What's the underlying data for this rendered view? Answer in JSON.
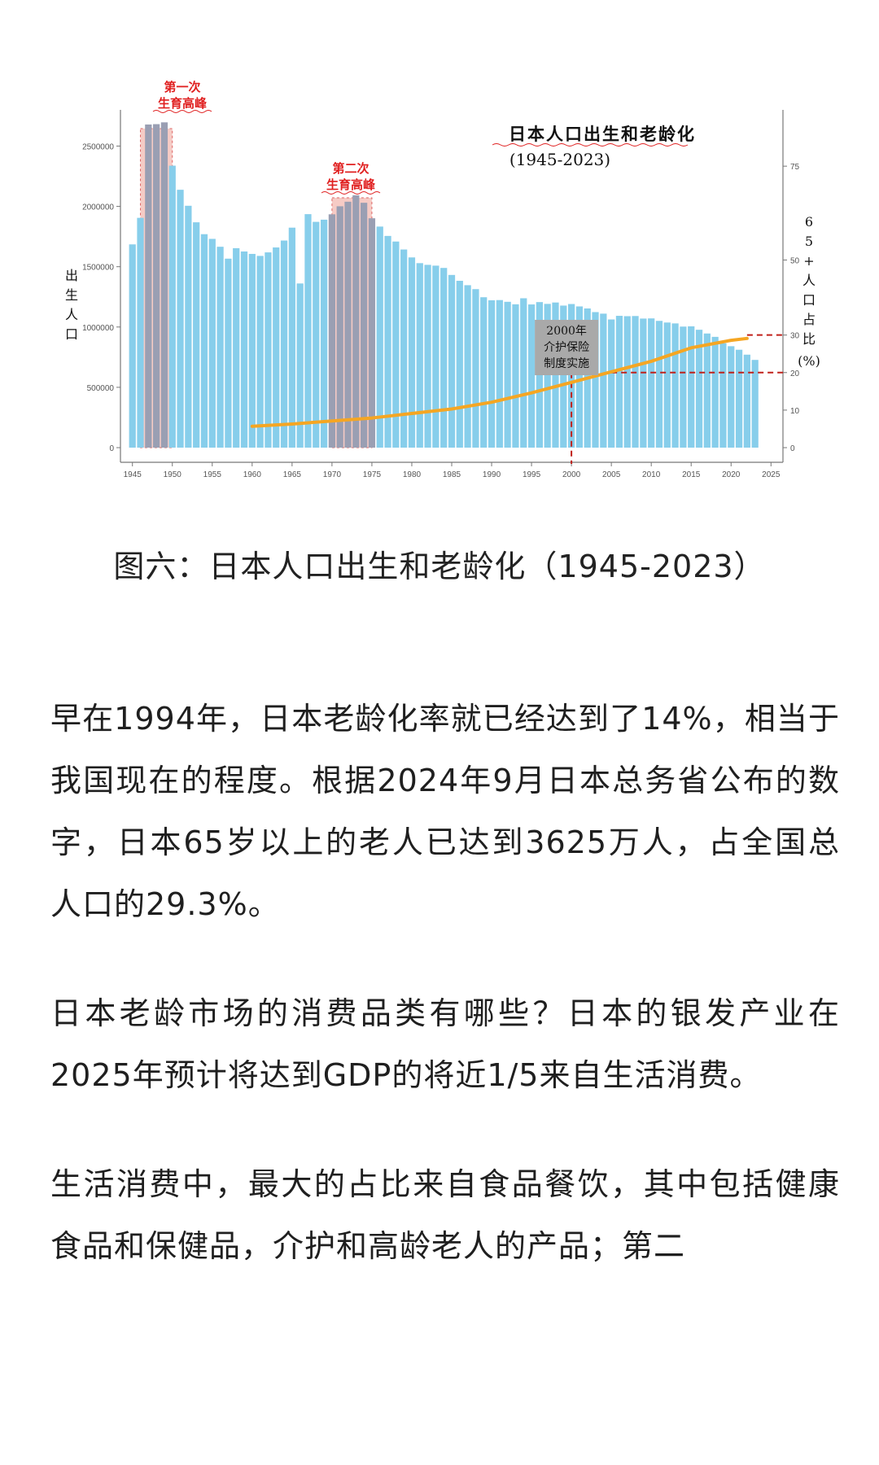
{
  "chart_data": {
    "type": "bar",
    "title": "日本人口出生和老龄化",
    "subtitle": "(1945-2023)",
    "ylabel_left": "出生人口",
    "ylabel_right": "65+人口占比(%)",
    "ylim_left": [
      0,
      2800000
    ],
    "yticks_left": [
      "0",
      "500000",
      "1000000",
      "1500000",
      "2000000",
      "2500000"
    ],
    "ylim_right": [
      0,
      90
    ],
    "yticks_right": [
      "0",
      "10",
      "20",
      "30",
      "50",
      "75"
    ],
    "xticks": [
      "1945",
      "1950",
      "1955",
      "1960",
      "1965",
      "1970",
      "1975",
      "1980",
      "1985",
      "1990",
      "1995",
      "2000",
      "2005",
      "2010",
      "2015",
      "2020",
      "2025"
    ],
    "bar_color": "#87ceeb",
    "line_color": "#f5a623",
    "births": {
      "x": [
        1945,
        1946,
        1947,
        1948,
        1949,
        1950,
        1951,
        1952,
        1953,
        1954,
        1955,
        1956,
        1957,
        1958,
        1959,
        1960,
        1961,
        1962,
        1963,
        1964,
        1965,
        1966,
        1967,
        1968,
        1969,
        1970,
        1971,
        1972,
        1973,
        1974,
        1975,
        1976,
        1977,
        1978,
        1979,
        1980,
        1981,
        1982,
        1983,
        1984,
        1985,
        1986,
        1987,
        1988,
        1989,
        1990,
        1991,
        1992,
        1993,
        1994,
        1995,
        1996,
        1997,
        1998,
        1999,
        2000,
        2001,
        2002,
        2003,
        2004,
        2005,
        2006,
        2007,
        2008,
        2009,
        2010,
        2011,
        2012,
        2013,
        2014,
        2015,
        2016,
        2017,
        2018,
        2019,
        2020,
        2021,
        2022,
        2023
      ],
      "values": [
        1685000,
        1905000,
        2678792,
        2681624,
        2696638,
        2337507,
        2137689,
        2005162,
        1868040,
        1769580,
        1730692,
        1665278,
        1566713,
        1653469,
        1626088,
        1606041,
        1589372,
        1618616,
        1659521,
        1716761,
        1823697,
        1360974,
        1935647,
        1871839,
        1889815,
        1934239,
        2000973,
        2038682,
        2091983,
        2029989,
        1901440,
        1832617,
        1755100,
        1708643,
        1642580,
        1576889,
        1529455,
        1515392,
        1508687,
        1489780,
        1431577,
        1382946,
        1346658,
        1314006,
        1246802,
        1221585,
        1223245,
        1208989,
        1188282,
        1238328,
        1187064,
        1206555,
        1191665,
        1203147,
        1177669,
        1190547,
        1170662,
        1153855,
        1123610,
        1110721,
        1062530,
        1092674,
        1089818,
        1091156,
        1070036,
        1071305,
        1050806,
        1037232,
        1029817,
        1003539,
        1005721,
        977242,
        946146,
        918400,
        865239,
        840835,
        811622,
        770759,
        727288
      ]
    },
    "aging": {
      "x": [
        1960,
        1965,
        1970,
        1975,
        1980,
        1985,
        1990,
        1995,
        2000,
        2005,
        2010,
        2015,
        2020,
        2022
      ],
      "values": [
        5.7,
        6.3,
        7.1,
        7.9,
        9.1,
        10.3,
        12.1,
        14.6,
        17.4,
        20.2,
        23.0,
        26.6,
        28.6,
        29.1
      ]
    },
    "highlights": [
      {
        "label_line1": "第一次",
        "label_line2": "生育高峰",
        "from": 1947,
        "to": 1949
      },
      {
        "label_line1": "第二次",
        "label_line2": "生育高峰",
        "from": 1971,
        "to": 1974
      }
    ],
    "annotation": {
      "line1": "2000年",
      "line2": "介护保险",
      "line3": "制度实施",
      "year": 2000
    },
    "ref_levels_pct": [
      20,
      30
    ]
  },
  "caption": "图六：日本人口出生和老龄化（1945-2023）",
  "article": {
    "p1": "早在1994年，日本老龄化率就已经达到了14%，相当于我国现在的程度。根据2024年9月日本总务省公布的数字，日本65岁以上的老人已达到3625万人，占全国总人口的29.3%。",
    "p2": "日本老龄市场的消费品类有哪些？日本的银发产业在2025年预计将达到GDP的将近1/5来自生活消费。",
    "p3": "生活消费中，最大的占比来自食品餐饮，其中包括健康食品和保健品，介护和高龄老人的产品；第二"
  }
}
